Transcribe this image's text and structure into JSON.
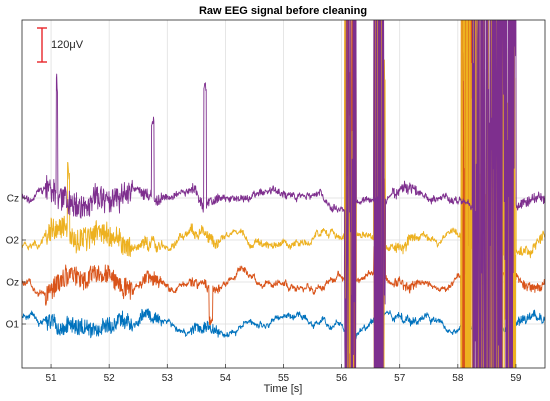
{
  "chart_data": {
    "type": "line",
    "title": "Raw EEG signal before cleaning",
    "xlabel": "Time [s]",
    "ylabel": "",
    "xlim": [
      50.5,
      59.5
    ],
    "x_ticks": [
      51,
      52,
      53,
      54,
      55,
      56,
      57,
      58,
      59
    ],
    "channels": [
      "O1",
      "Oz",
      "O2",
      "Cz"
    ],
    "scale_bar_label": "120μV",
    "grid": true,
    "legend": "none",
    "series": [
      {
        "channel": "O1",
        "color": "#0072BD",
        "baseline_rank": 1
      },
      {
        "channel": "Oz",
        "color": "#D95319",
        "baseline_rank": 2
      },
      {
        "channel": "O2",
        "color": "#EDB120",
        "baseline_rank": 3
      },
      {
        "channel": "Cz",
        "color": "#7E2F8E",
        "baseline_rank": 4
      }
    ],
    "artifact_windows": [
      {
        "from": 56.05,
        "to": 56.25,
        "channels": [
          "Cz",
          "O2",
          "Oz"
        ]
      },
      {
        "from": 56.55,
        "to": 56.75,
        "channels": [
          "Cz",
          "O2",
          "Oz"
        ]
      },
      {
        "from": 58.05,
        "to": 58.25,
        "channels": [
          "O2",
          "Oz"
        ]
      },
      {
        "from": 58.25,
        "to": 59.0,
        "channels": [
          "Cz",
          "O2"
        ]
      }
    ]
  }
}
